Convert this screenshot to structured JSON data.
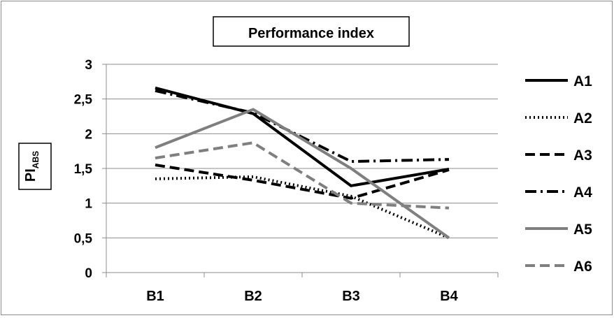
{
  "chart_data": {
    "type": "line",
    "title": "Performance index",
    "ylabel": "PI",
    "ylabel_sub": "ABS",
    "xlabel": "",
    "categories": [
      "B1",
      "B2",
      "B3",
      "B4"
    ],
    "ylim": [
      0,
      3
    ],
    "yticks": [
      0,
      0.5,
      1,
      1.5,
      2,
      2.5,
      3
    ],
    "ytick_labels": [
      "0",
      "0,5",
      "1",
      "1,5",
      "2",
      "2,5",
      "3"
    ],
    "grid": true,
    "legend_position": "right",
    "series": [
      {
        "name": "A1",
        "values": [
          2.66,
          2.29,
          1.25,
          1.49
        ],
        "color": "#000000",
        "dash": "solid"
      },
      {
        "name": "A2",
        "values": [
          1.35,
          1.38,
          1.1,
          0.5
        ],
        "color": "#000000",
        "dash": "dot"
      },
      {
        "name": "A3",
        "values": [
          1.55,
          1.33,
          1.07,
          1.48
        ],
        "color": "#000000",
        "dash": "dash"
      },
      {
        "name": "A4",
        "values": [
          2.62,
          2.3,
          1.6,
          1.63
        ],
        "color": "#000000",
        "dash": "dashdot"
      },
      {
        "name": "A5",
        "values": [
          1.8,
          2.35,
          1.5,
          0.5
        ],
        "color": "#7f7f7f",
        "dash": "solid"
      },
      {
        "name": "A6",
        "values": [
          1.65,
          1.87,
          1.0,
          0.93
        ],
        "color": "#7f7f7f",
        "dash": "dash"
      }
    ]
  }
}
